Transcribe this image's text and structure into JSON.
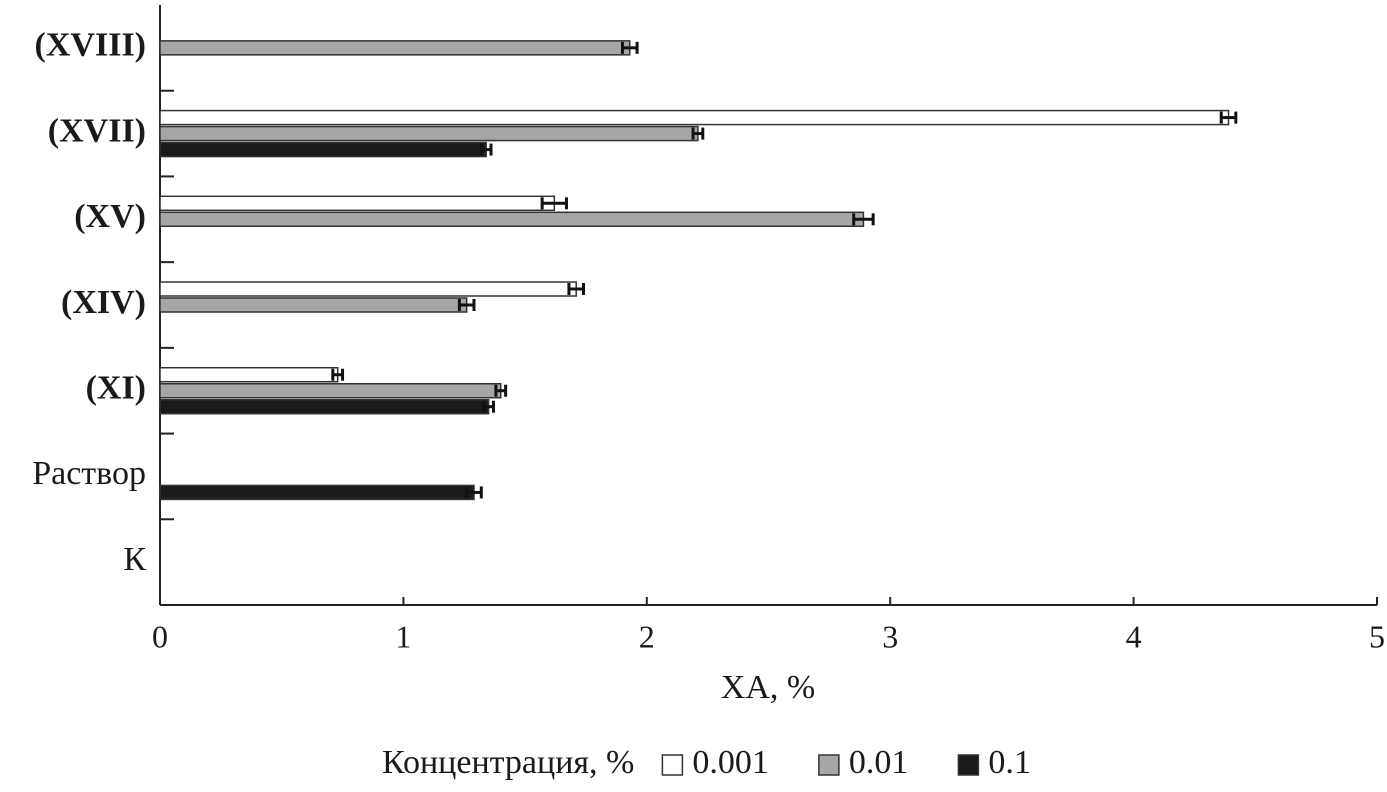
{
  "chart_data": {
    "type": "bar",
    "orientation": "horizontal",
    "categories": [
      "(XVIII)",
      "(XVII)",
      "(XV)",
      "(XIV)",
      "(XI)",
      "Раствор",
      "К"
    ],
    "series": [
      {
        "name": "0.001",
        "color": "#ffffff",
        "values": [
          null,
          4.39,
          1.62,
          1.71,
          0.73,
          null,
          null
        ],
        "errors": [
          null,
          0.03,
          0.05,
          0.03,
          0.02,
          null,
          null
        ]
      },
      {
        "name": "0.01",
        "color": "#a6a6a6",
        "values": [
          1.93,
          2.21,
          2.89,
          1.26,
          1.4,
          null,
          null
        ],
        "errors": [
          0.03,
          0.02,
          0.04,
          0.03,
          0.02,
          null,
          null
        ]
      },
      {
        "name": "0.1",
        "color": "#1a1a1a",
        "values": [
          null,
          1.34,
          null,
          null,
          1.35,
          1.29,
          null
        ],
        "errors": [
          null,
          0.02,
          null,
          null,
          0.02,
          0.03,
          null
        ]
      }
    ],
    "xlim": [
      0,
      5
    ],
    "xticks": [
      0,
      1,
      2,
      3,
      4,
      5
    ],
    "x_label": "ХА, %",
    "legend_title": "Концентрация, %",
    "legend_position": "bottom"
  }
}
